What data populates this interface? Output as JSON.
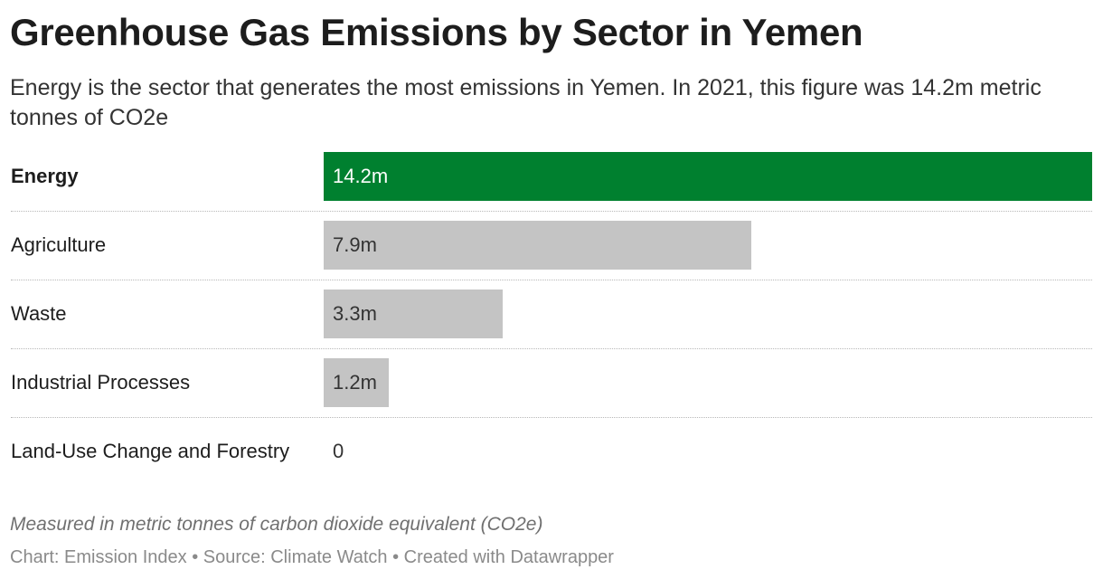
{
  "header": {
    "title": "Greenhouse Gas Emissions by Sector in Yemen",
    "subtitle": "Energy is the sector that generates the most emissions in Yemen. In 2021, this figure was 14.2m metric tonnes of CO2e"
  },
  "chart_data": {
    "type": "bar",
    "orientation": "horizontal",
    "title": "Greenhouse Gas Emissions by Sector in Yemen",
    "categories": [
      "Energy",
      "Agriculture",
      "Waste",
      "Industrial Processes",
      "Land-Use Change and Forestry"
    ],
    "values": [
      14.2,
      7.9,
      3.3,
      1.2,
      0
    ],
    "value_labels": [
      "14.2m",
      "7.9m",
      "3.3m",
      "1.2m",
      "0"
    ],
    "unit": "million metric tonnes CO2e",
    "highlight": "Energy",
    "xlim": [
      0,
      14.2
    ],
    "grid": false,
    "colors": {
      "highlight": "#00802f",
      "default": "#c4c4c4"
    }
  },
  "notes": "Measured in metric tonnes of carbon dioxide equivalent (CO2e)",
  "footer": "Chart: Emission Index • Source: Climate Watch • Created with Datawrapper"
}
